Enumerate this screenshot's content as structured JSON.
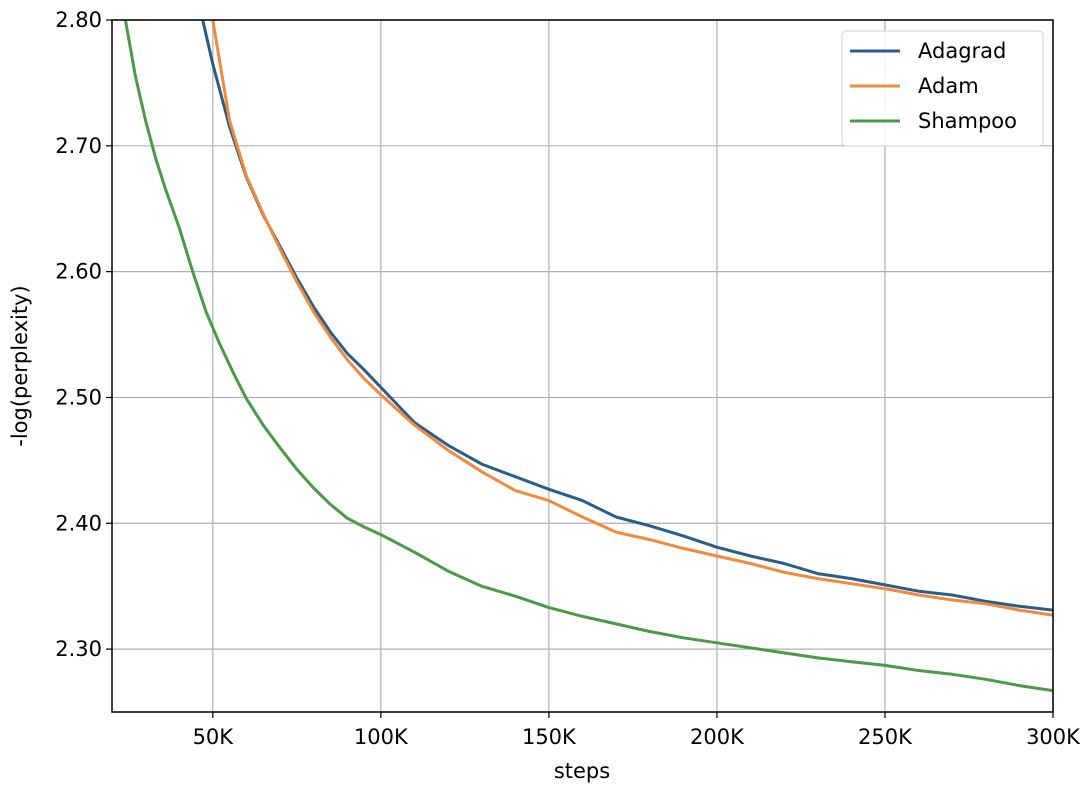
{
  "chart_data": {
    "type": "line",
    "title": "",
    "xlabel": "steps",
    "ylabel": "-log(perplexity)",
    "xlim": [
      20000,
      300000
    ],
    "ylim": [
      2.25,
      2.8
    ],
    "x_ticks": [
      50000,
      100000,
      150000,
      200000,
      250000,
      300000
    ],
    "x_tick_labels": [
      "50K",
      "100K",
      "150K",
      "200K",
      "250K",
      "300K"
    ],
    "y_ticks": [
      2.3,
      2.4,
      2.5,
      2.6,
      2.7,
      2.8
    ],
    "y_tick_labels": [
      "2.30",
      "2.40",
      "2.50",
      "2.60",
      "2.70",
      "2.80"
    ],
    "grid": true,
    "legend_position": "top-right",
    "series": [
      {
        "name": "Adagrad",
        "color": "#2b5d8a",
        "x": [
          47000,
          50000,
          55000,
          60000,
          65000,
          70000,
          75000,
          80000,
          85000,
          90000,
          95000,
          100000,
          110000,
          120000,
          130000,
          140000,
          150000,
          160000,
          170000,
          180000,
          190000,
          200000,
          210000,
          220000,
          230000,
          240000,
          250000,
          260000,
          270000,
          280000,
          290000,
          300000
        ],
        "y": [
          2.8,
          2.765,
          2.715,
          2.675,
          2.645,
          2.62,
          2.595,
          2.572,
          2.552,
          2.535,
          2.522,
          2.508,
          2.48,
          2.462,
          2.447,
          2.437,
          2.427,
          2.418,
          2.405,
          2.398,
          2.39,
          2.381,
          2.374,
          2.368,
          2.36,
          2.356,
          2.351,
          2.346,
          2.343,
          2.338,
          2.334,
          2.331
        ]
      },
      {
        "name": "Adam",
        "color": "#f08a3c",
        "x": [
          50000,
          55000,
          60000,
          65000,
          70000,
          75000,
          80000,
          85000,
          90000,
          95000,
          100000,
          110000,
          120000,
          130000,
          140000,
          150000,
          160000,
          170000,
          180000,
          190000,
          200000,
          210000,
          220000,
          230000,
          240000,
          250000,
          260000,
          270000,
          280000,
          290000,
          300000
        ],
        "y": [
          2.8,
          2.72,
          2.676,
          2.646,
          2.618,
          2.592,
          2.568,
          2.548,
          2.53,
          2.515,
          2.502,
          2.478,
          2.458,
          2.441,
          2.426,
          2.418,
          2.405,
          2.393,
          2.387,
          2.38,
          2.374,
          2.368,
          2.361,
          2.356,
          2.352,
          2.348,
          2.343,
          2.339,
          2.336,
          2.331,
          2.327
        ]
      },
      {
        "name": "Shampoo",
        "color": "#4a9a47",
        "x": [
          24000,
          27000,
          30000,
          33000,
          36000,
          40000,
          44000,
          48000,
          52000,
          56000,
          60000,
          65000,
          70000,
          75000,
          80000,
          85000,
          90000,
          95000,
          100000,
          110000,
          120000,
          130000,
          140000,
          150000,
          160000,
          170000,
          180000,
          190000,
          200000,
          210000,
          220000,
          230000,
          240000,
          250000,
          260000,
          270000,
          280000,
          290000,
          300000
        ],
        "y": [
          2.8,
          2.755,
          2.72,
          2.69,
          2.665,
          2.635,
          2.6,
          2.568,
          2.543,
          2.52,
          2.499,
          2.478,
          2.46,
          2.443,
          2.428,
          2.415,
          2.404,
          2.397,
          2.391,
          2.377,
          2.362,
          2.35,
          2.342,
          2.333,
          2.326,
          2.32,
          2.314,
          2.309,
          2.305,
          2.301,
          2.297,
          2.293,
          2.29,
          2.287,
          2.283,
          2.28,
          2.276,
          2.271,
          2.267
        ]
      }
    ]
  }
}
